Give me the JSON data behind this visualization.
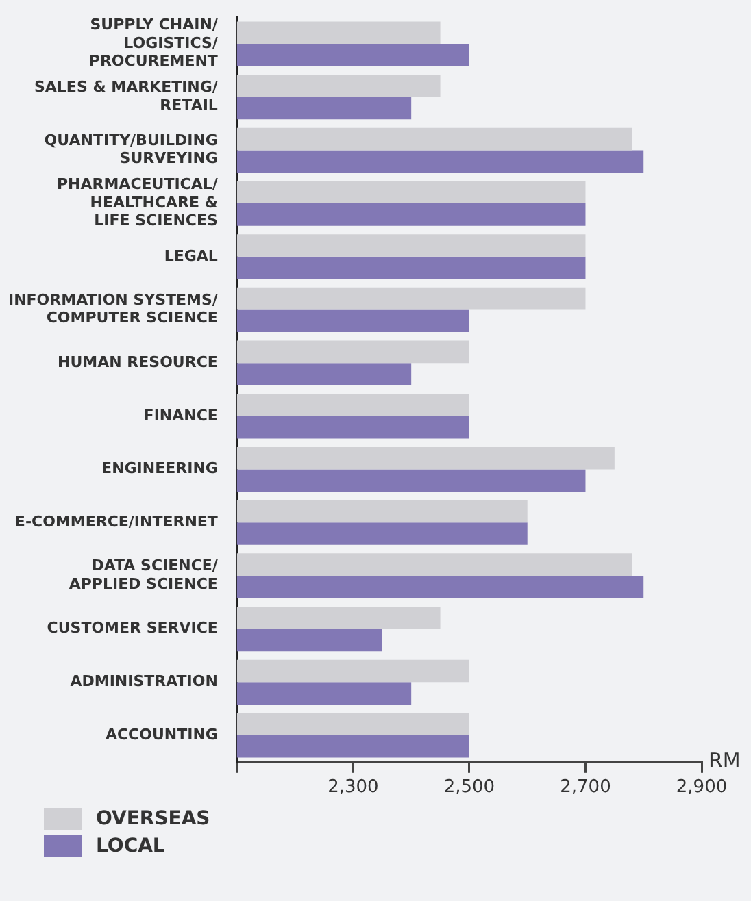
{
  "chart_data": {
    "type": "bar",
    "orientation": "horizontal",
    "xlabel": "RM",
    "categories": [
      "SUPPLY CHAIN/\nLOGISTICS/\nPROCUREMENT",
      "SALES & MARKETING/\nRETAIL",
      "QUANTITY/BUILDING\nSURVEYING",
      "PHARMACEUTICAL/\nHEALTHCARE &\nLIFE SCIENCES",
      "LEGAL",
      "INFORMATION SYSTEMS/\nCOMPUTER SCIENCE",
      "HUMAN RESOURCE",
      "FINANCE",
      "ENGINEERING",
      "E-COMMERCE/INTERNET",
      "DATA SCIENCE/\nAPPLIED SCIENCE",
      "CUSTOMER SERVICE",
      "ADMINISTRATION",
      "ACCOUNTING"
    ],
    "series": [
      {
        "name": "OVERSEAS",
        "color": "#d0d0d4",
        "values": [
          2450,
          2450,
          2780,
          2700,
          2700,
          2700,
          2500,
          2500,
          2750,
          2600,
          2780,
          2450,
          2500,
          2500
        ]
      },
      {
        "name": "LOCAL",
        "color": "#8278b5",
        "values": [
          2500,
          2400,
          2800,
          2700,
          2700,
          2500,
          2400,
          2500,
          2700,
          2600,
          2800,
          2350,
          2400,
          2500
        ]
      }
    ],
    "xlim": [
      2100,
      2900
    ],
    "xticks": [
      {
        "value": 2100,
        "label": null
      },
      {
        "value": 2300,
        "label": "2,300"
      },
      {
        "value": 2500,
        "label": "2,500"
      },
      {
        "value": 2700,
        "label": "2,700"
      },
      {
        "value": 2900,
        "label": "2,900"
      }
    ],
    "grid": false,
    "legend": "bottom left"
  }
}
